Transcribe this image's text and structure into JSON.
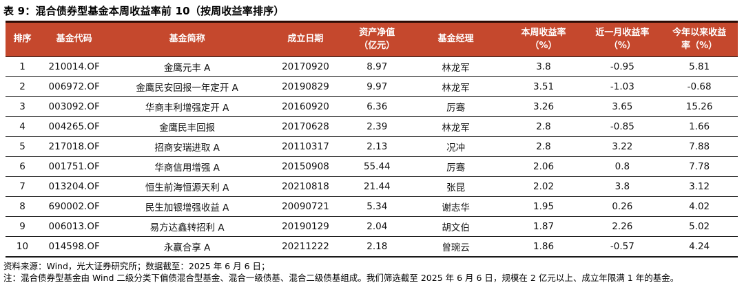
{
  "title": "表 9：混合债券型基金本周收益率前 10（按周收益率排序）",
  "colors": {
    "header_bg": "#c5482d",
    "header_text": "#ffffff",
    "top_rule": "#2a0c06",
    "row_rule": "#1a1a1a",
    "page_bg": "#ffffff"
  },
  "table": {
    "columns": [
      {
        "key": "rank",
        "lines": [
          "排序"
        ]
      },
      {
        "key": "fund-code",
        "lines": [
          "基金代码"
        ]
      },
      {
        "key": "fund-name",
        "lines": [
          "基金简称"
        ]
      },
      {
        "key": "inception-date",
        "lines": [
          "成立日期"
        ]
      },
      {
        "key": "nav",
        "lines": [
          "资产净值",
          "（亿元）"
        ]
      },
      {
        "key": "fund-manager",
        "lines": [
          "基金经理"
        ]
      },
      {
        "key": "weekly-return",
        "lines": [
          "本周收益率",
          "（%）"
        ]
      },
      {
        "key": "monthly-return",
        "lines": [
          "近一月收益率",
          "（%）"
        ]
      },
      {
        "key": "ytd-return",
        "lines": [
          "今年以来收益",
          "率（%）"
        ]
      }
    ],
    "rows": [
      [
        "1",
        "210014.OF",
        "金鹰元丰 A",
        "20170920",
        "8.97",
        "林龙军",
        "3.8",
        "-0.95",
        "5.81"
      ],
      [
        "2",
        "006972.OF",
        "金鹰民安回报一年定开 A",
        "20190829",
        "9.97",
        "林龙军",
        "3.51",
        "-1.03",
        "-0.68"
      ],
      [
        "3",
        "003092.OF",
        "华商丰利增强定开 A",
        "20160920",
        "6.36",
        "厉骞",
        "3.26",
        "3.65",
        "15.26"
      ],
      [
        "4",
        "004265.OF",
        "金鹰民丰回报",
        "20170628",
        "2.39",
        "林龙军",
        "2.8",
        "-0.85",
        "1.66"
      ],
      [
        "5",
        "217018.OF",
        "招商安瑞进取 A",
        "20110317",
        "2.13",
        "况冲",
        "2.8",
        "3.22",
        "7.88"
      ],
      [
        "6",
        "001751.OF",
        "华商信用增强 A",
        "20150908",
        "55.44",
        "厉骞",
        "2.06",
        "0.8",
        "7.78"
      ],
      [
        "7",
        "013204.OF",
        "恒生前海恒源天利 A",
        "20210818",
        "21.44",
        "张昆",
        "2.02",
        "3.8",
        "3.12"
      ],
      [
        "8",
        "690002.OF",
        "民生加银增强收益 A",
        "20090721",
        "5.34",
        "谢志华",
        "1.95",
        "0.26",
        "4.02"
      ],
      [
        "9",
        "006013.OF",
        "易方达鑫转招利 A",
        "20190129",
        "2.04",
        "胡文伯",
        "1.87",
        "2.26",
        "5.02"
      ],
      [
        "10",
        "014598.OF",
        "永赢合享 A",
        "20211222",
        "2.18",
        "曾琬云",
        "1.86",
        "-0.57",
        "4.24"
      ]
    ]
  },
  "footnotes": {
    "source": "资料来源：Wind，光大证券研究所；数据截至：2025 年 6 月 6 日；",
    "note": "注：混合债券型基金由 Wind 二级分类下偏债混合型基金、混合一级债基、混合二级债基组成。我们筛选截至 2025 年 6 月 6 日，规模在 2 亿元以上、成立年限满 1 年的基金。"
  }
}
